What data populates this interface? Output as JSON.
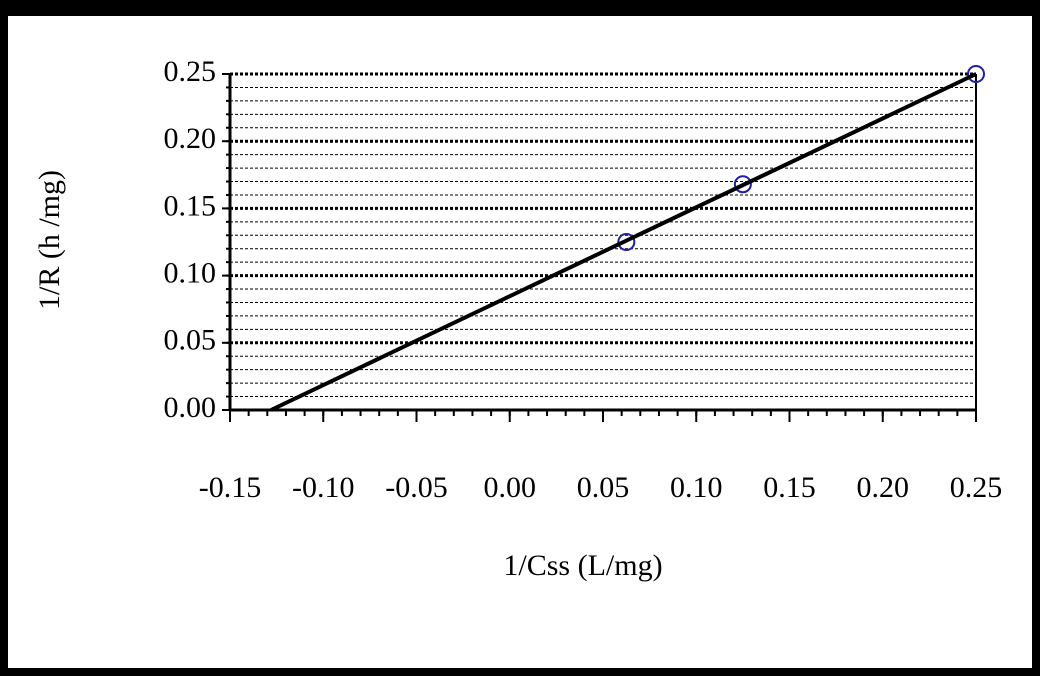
{
  "chart_data": {
    "type": "scatter",
    "x_label": "1/Css (L/mg)",
    "y_label": "1/R (h /mg)",
    "series": [
      {
        "color": "#1f1fa8",
        "marker": "circle",
        "x": [
          0.0625,
          0.125,
          0.25
        ],
        "values": [
          0.125,
          0.168,
          0.25
        ]
      },
      {
        "color": "#000000",
        "marker": "line",
        "x": [
          -0.128,
          0.25
        ],
        "values": [
          0,
          0.25
        ]
      }
    ],
    "xlim": [
      -0.15,
      0.25
    ],
    "ylim": [
      0,
      0.25
    ],
    "xticks": [
      -0.15,
      {
        "value": -0.1,
        "label": "-0.10"
      },
      -0.05,
      {
        "value": 0,
        "label": "0.00"
      },
      0.05,
      {
        "value": 0.1,
        "label": "0.10"
      },
      0.15,
      {
        "value": 0.2,
        "label": "0.20"
      },
      0.25
    ],
    "yticks": [
      {
        "value": 0,
        "label": "0.00"
      },
      0.05,
      {
        "value": 0.1,
        "label": "0.10"
      },
      0.15,
      {
        "value": 0.2,
        "label": "0.20"
      },
      0.25
    ],
    "x_minor_step": 0.01,
    "y_minor_step": 0.01,
    "grid": true
  }
}
